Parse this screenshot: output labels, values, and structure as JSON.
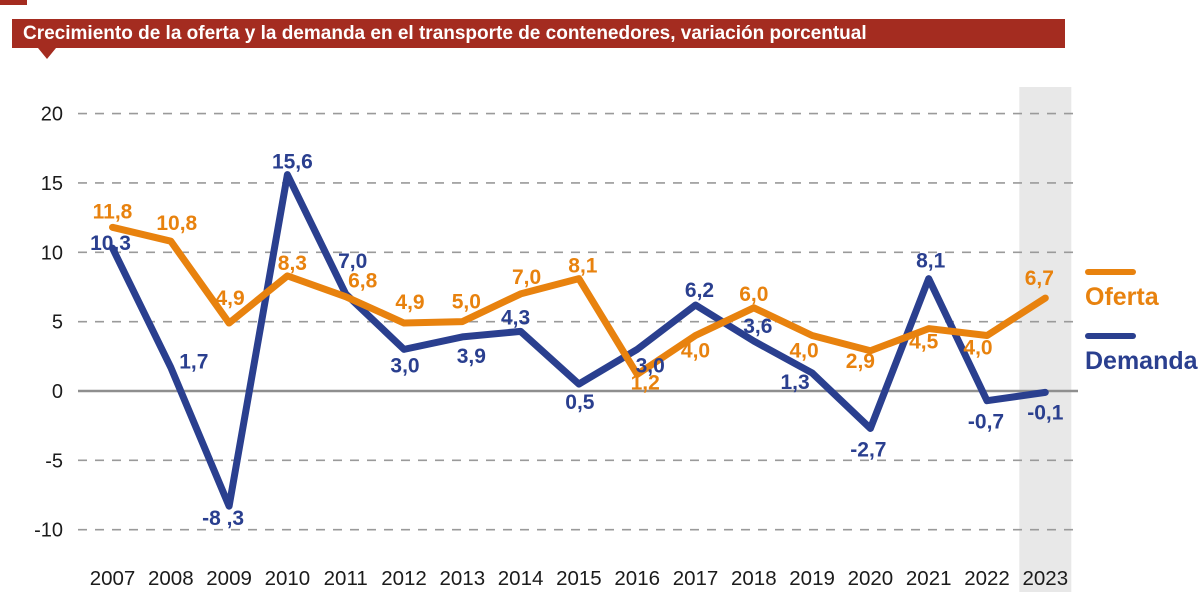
{
  "header": {
    "title": "Crecimiento de la oferta y la demanda en el transporte de contenedores, variación porcentual"
  },
  "colors": {
    "header_bg": "#A42C20",
    "header_text": "#FFFFFF",
    "oferta": "#E8820E",
    "demanda": "#2A3F8F",
    "gridline": "#9A9A9A",
    "zero_line": "#8F8F8F",
    "highlight_band": "#E8E8E8",
    "axis_text": "#1B1B1B"
  },
  "legend": {
    "items": [
      {
        "label": "Oferta",
        "color": "#E8820E"
      },
      {
        "label": "Demanda",
        "color": "#2A3F8F"
      }
    ]
  },
  "chart_data": {
    "type": "line",
    "title": "Crecimiento de la oferta y la demanda en el transporte de contenedores, variación porcentual",
    "xlabel": "",
    "ylabel": "",
    "categories": [
      "2007",
      "2008",
      "2009",
      "2010",
      "2011",
      "2012",
      "2013",
      "2014",
      "2015",
      "2016",
      "2017",
      "2018",
      "2019",
      "2020",
      "2021",
      "2022",
      "2023"
    ],
    "series": [
      {
        "name": "Oferta",
        "color": "#E8820E",
        "values": [
          11.8,
          10.8,
          4.9,
          8.3,
          6.8,
          4.9,
          5.0,
          7.0,
          8.1,
          1.2,
          4.0,
          6.0,
          4.0,
          2.9,
          4.5,
          4.0,
          6.7
        ],
        "point_labels": [
          "11,8",
          "10,8",
          "4,9",
          "8,3",
          "6,8",
          "4,9",
          "5,0",
          "7,0",
          "8,1",
          "1,2",
          "4,0",
          "6,0",
          "4,0",
          "2,9",
          "4,5",
          "4,0",
          "6,7"
        ]
      },
      {
        "name": "Demanda",
        "color": "#2A3F8F",
        "values": [
          10.3,
          1.7,
          -8.3,
          15.6,
          7.0,
          3.0,
          3.9,
          4.3,
          0.5,
          3.0,
          6.2,
          3.6,
          1.3,
          -2.7,
          8.1,
          -0.7,
          -0.1
        ],
        "point_labels": [
          "10,3",
          "1,7",
          "-8 ,3",
          "15,6",
          "7,0",
          "3,0",
          "3,9",
          "4,3",
          "0,5",
          "3,0",
          "6,2",
          "3,6",
          "1,3",
          "-2,7",
          "8,1",
          "-0,7",
          "-0,1"
        ]
      }
    ],
    "y_ticks": [
      20,
      15,
      10,
      5,
      0,
      -5,
      -10
    ],
    "ylim": [
      -12,
      21.5
    ],
    "grid": "horizontal-dashed",
    "zero_line": "solid",
    "legend_position": "right",
    "highlight_category": "2023",
    "decimal_separator": ","
  }
}
